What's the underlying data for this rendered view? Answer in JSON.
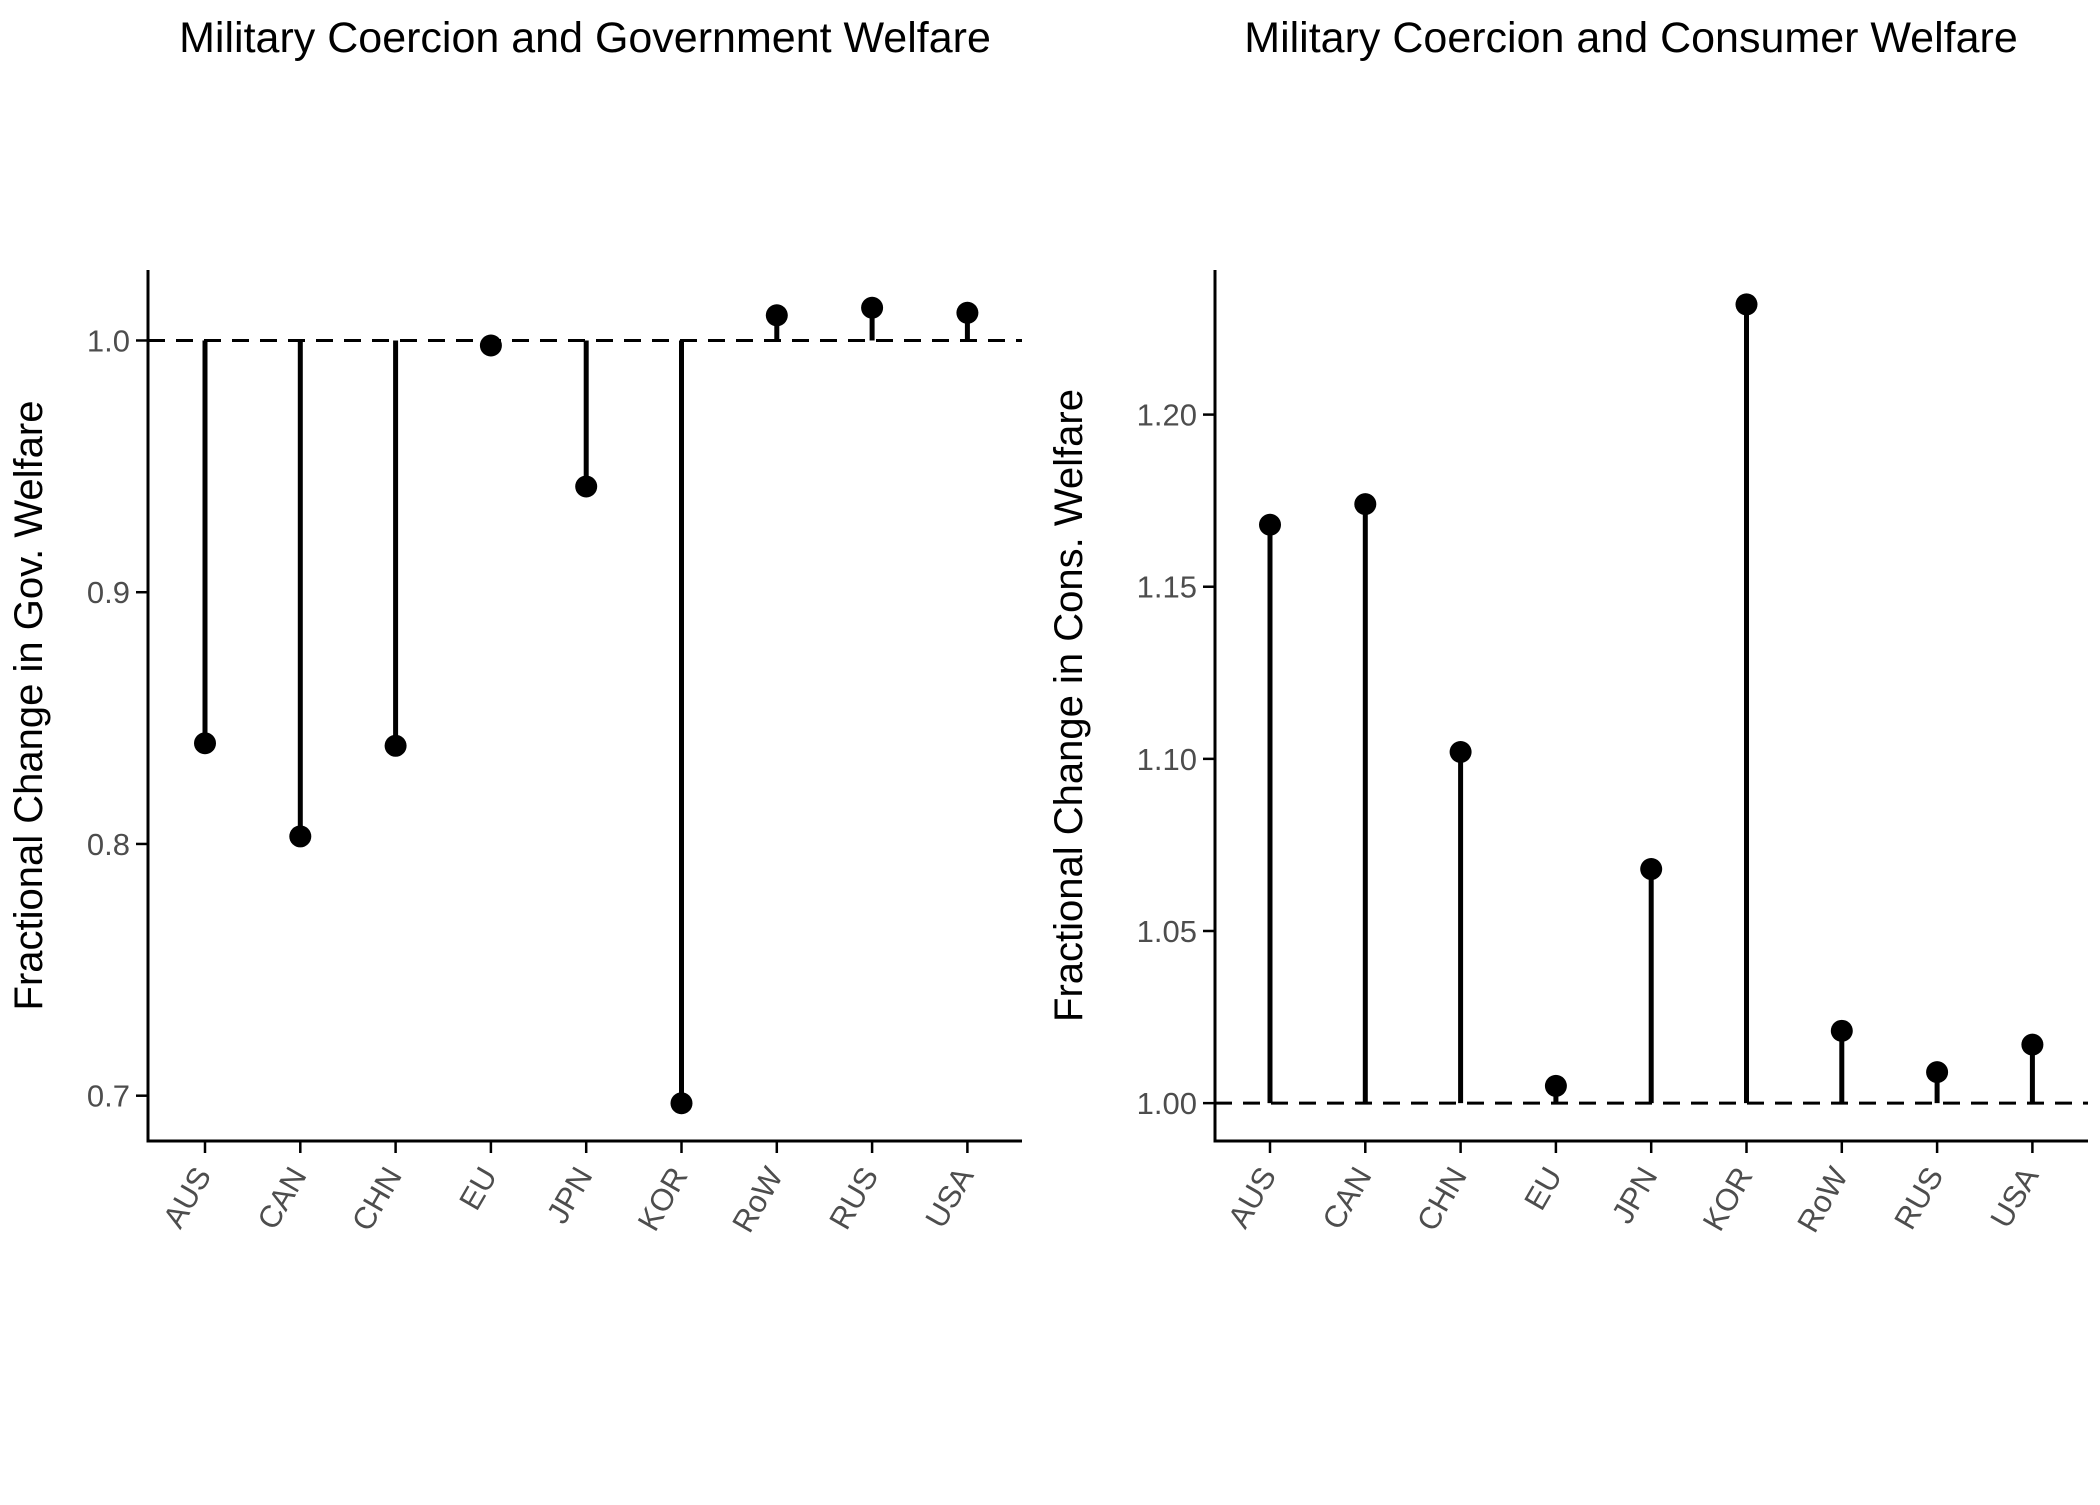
{
  "chart_data": [
    {
      "type": "lollipop",
      "title": "Military Coercion and Government Welfare",
      "xlabel": "",
      "ylabel": "Fractional Change in Gov. Welfare",
      "categories": [
        "AUS",
        "CAN",
        "CHN",
        "EU",
        "JPN",
        "KOR",
        "RoW",
        "RUS",
        "USA"
      ],
      "values": [
        0.84,
        0.803,
        0.839,
        0.998,
        0.942,
        0.697,
        1.01,
        1.013,
        1.011
      ],
      "baseline": 1.0,
      "ylim": [
        0.682,
        1.028
      ],
      "yticks": [
        0.7,
        0.8,
        0.9,
        1.0
      ],
      "ytick_labels": [
        "0.7",
        "0.8",
        "0.9",
        "1.0"
      ],
      "grid": false
    },
    {
      "type": "lollipop",
      "title": "Military Coercion and Consumer Welfare",
      "xlabel": "",
      "ylabel": "Fractional Change in Cons. Welfare",
      "categories": [
        "AUS",
        "CAN",
        "CHN",
        "EU",
        "JPN",
        "KOR",
        "RoW",
        "RUS",
        "USA"
      ],
      "values": [
        1.168,
        1.174,
        1.102,
        1.005,
        1.068,
        1.232,
        1.021,
        1.009,
        1.017
      ],
      "baseline": 1.0,
      "ylim": [
        0.989,
        1.242
      ],
      "yticks": [
        1.0,
        1.05,
        1.1,
        1.15,
        1.2
      ],
      "ytick_labels": [
        "1.00",
        "1.05",
        "1.10",
        "1.15",
        "1.20"
      ],
      "grid": false
    }
  ]
}
